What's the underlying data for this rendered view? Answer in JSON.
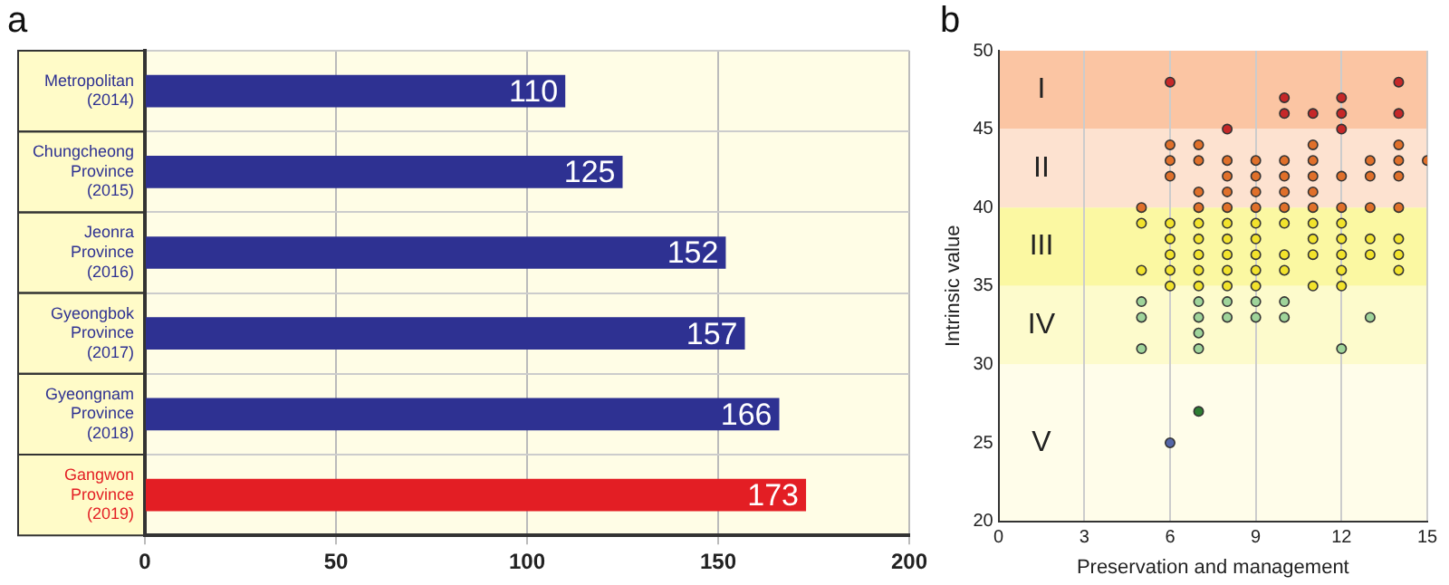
{
  "chart_data": [
    {
      "type": "bar",
      "title": "a",
      "orientation": "horizontal",
      "categories": [
        "Metropolitan (2014)",
        "Chungcheong Province (2015)",
        "Jeonra Province (2016)",
        "Gyeongbok Province (2017)",
        "Gyeongnam Province (2018)",
        "Gangwon Province (2019)"
      ],
      "values": [
        110,
        125,
        152,
        157,
        166,
        173
      ],
      "colors": [
        "#2e3192",
        "#2e3192",
        "#2e3192",
        "#2e3192",
        "#2e3192",
        "#e31e24"
      ],
      "xlim": [
        0,
        200
      ],
      "xticks": [
        0,
        50,
        100,
        150,
        200
      ],
      "grid": true,
      "data_labels": true,
      "legend": false
    },
    {
      "type": "scatter",
      "title": "b",
      "xlabel": "Preservation and management",
      "ylabel": "Intrinsic value",
      "xlim": [
        0,
        15
      ],
      "xticks": [
        0,
        3,
        6,
        9,
        12,
        15
      ],
      "ylim": [
        20,
        50
      ],
      "yticks": [
        20,
        25,
        30,
        35,
        40,
        45,
        50
      ],
      "grid": "x",
      "legend": false,
      "marker": "circle",
      "bands": [
        {
          "axis": "y",
          "from": 45,
          "to": 50,
          "label": "I",
          "color": "#fbc5a3"
        },
        {
          "axis": "y",
          "from": 40,
          "to": 45,
          "label": "II",
          "color": "#fde2d0"
        },
        {
          "axis": "y",
          "from": 35,
          "to": 40,
          "label": "III",
          "color": "#fbf8a2"
        },
        {
          "axis": "y",
          "from": 30,
          "to": 35,
          "label": "IV",
          "color": "#fdfbcc"
        },
        {
          "axis": "y",
          "from": 20,
          "to": 30,
          "label": "V",
          "color": "#fffdea"
        }
      ],
      "series": [
        {
          "color": "#c62828",
          "x": [
            6,
            8,
            10,
            10,
            11,
            12,
            12,
            12,
            14,
            14
          ],
          "values": [
            48,
            45,
            47,
            46,
            46,
            47,
            46,
            45,
            48,
            46
          ]
        },
        {
          "color": "#e0702a",
          "x": [
            6,
            7,
            11,
            14,
            6,
            7,
            8,
            9,
            10,
            11,
            13,
            14,
            15,
            6,
            8,
            9,
            10,
            11,
            12,
            13,
            14,
            7,
            8,
            9,
            10,
            11,
            5,
            7,
            8,
            9,
            10,
            11,
            12,
            13,
            14
          ],
          "values": [
            44,
            44,
            44,
            44,
            43,
            43,
            43,
            43,
            43,
            43,
            43,
            43,
            43,
            42,
            42,
            42,
            42,
            42,
            42,
            42,
            42,
            41,
            41,
            41,
            41,
            41,
            40,
            40,
            40,
            40,
            40,
            40,
            40,
            40,
            40
          ]
        },
        {
          "color": "#f2e32c",
          "x": [
            5,
            6,
            7,
            8,
            9,
            10,
            11,
            12,
            6,
            7,
            8,
            9,
            11,
            12,
            13,
            14,
            6,
            7,
            8,
            9,
            10,
            11,
            12,
            13,
            14,
            5,
            6,
            7,
            8,
            9,
            10,
            12,
            14,
            6,
            7,
            8,
            9,
            11,
            12
          ],
          "values": [
            39,
            39,
            39,
            39,
            39,
            39,
            39,
            39,
            38,
            38,
            38,
            38,
            38,
            38,
            38,
            38,
            37,
            37,
            37,
            37,
            37,
            37,
            37,
            37,
            37,
            36,
            36,
            36,
            36,
            36,
            36,
            36,
            36,
            35,
            35,
            35,
            35,
            35,
            35
          ]
        },
        {
          "color": "#9fd49a",
          "x": [
            5,
            7,
            8,
            9,
            10,
            5,
            7,
            8,
            9,
            10,
            13,
            7,
            5,
            7,
            12
          ],
          "values": [
            34,
            34,
            34,
            34,
            34,
            33,
            33,
            33,
            33,
            33,
            33,
            32,
            31,
            31,
            31
          ]
        },
        {
          "color": "#2e7d32",
          "x": [
            7
          ],
          "values": [
            27
          ]
        },
        {
          "color": "#5566a8",
          "x": [
            6
          ],
          "values": [
            25
          ]
        }
      ]
    }
  ]
}
